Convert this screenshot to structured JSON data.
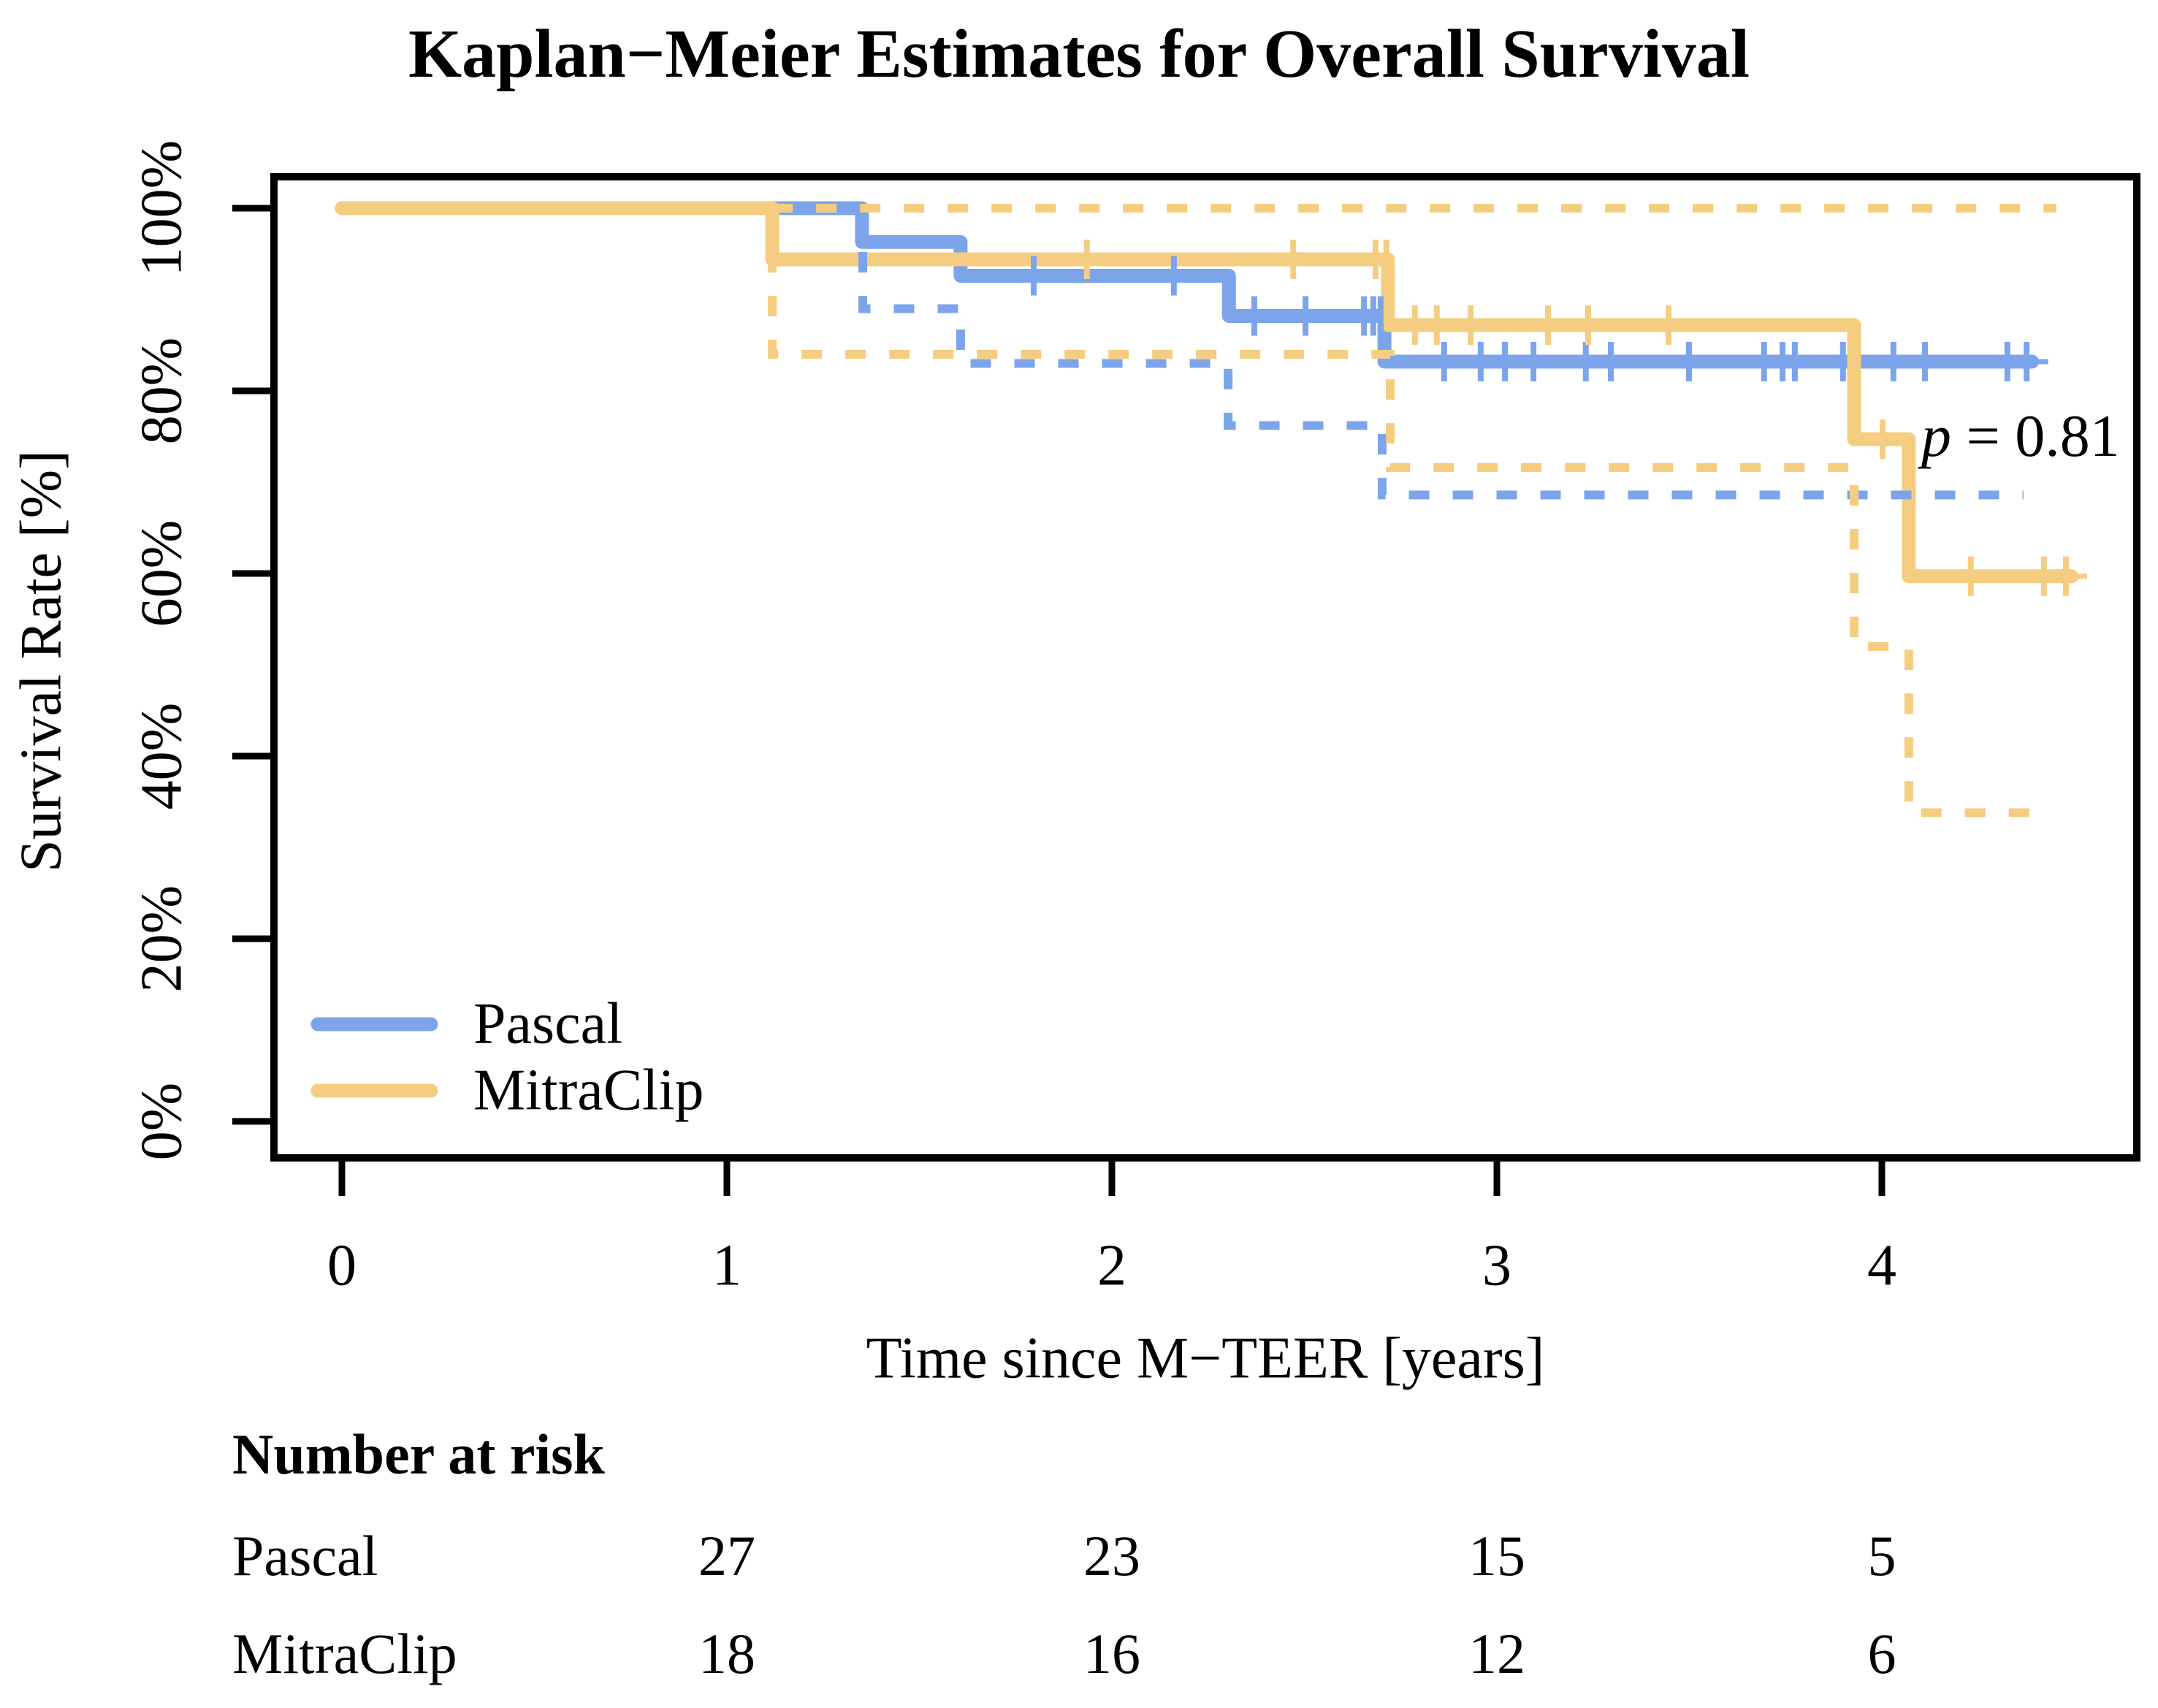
{
  "chart_data": {
    "type": "line",
    "subtype": "kaplan-meier-step",
    "title": "Kaplan−Meier Estimates for Overall Survival",
    "xlabel": "Time since M−TEER [years]",
    "ylabel": "Survival Rate [%]",
    "xlim": [
      0,
      4.66
    ],
    "ylim": [
      0,
      100
    ],
    "grid": false,
    "legend_position": "bottom-left",
    "x_ticks": [
      0,
      1,
      2,
      3,
      4
    ],
    "y_ticks": [
      {
        "label": "0%",
        "pct": 0
      },
      {
        "label": "20%",
        "pct": 20
      },
      {
        "label": "40%",
        "pct": 40
      },
      {
        "label": "60%",
        "pct": 60
      },
      {
        "label": "80%",
        "pct": 80
      },
      {
        "label": "100%",
        "pct": 100
      }
    ],
    "annotation": {
      "variable": "p",
      "rest": " = 0.81"
    },
    "series": [
      {
        "name": "Pascal",
        "color": "#7CA4EB",
        "steps": [
          [
            0,
            100
          ],
          [
            1.351,
            96.3
          ],
          [
            1.607,
            92.6
          ],
          [
            2.304,
            88.2
          ],
          [
            2.708,
            83.2
          ]
        ],
        "end_t": 4.39,
        "tail_t": 4.432,
        "censor_marks": [
          [
            1.797,
            92.6
          ],
          [
            2.161,
            92.6
          ],
          [
            2.37,
            88.2
          ],
          [
            2.503,
            88.2
          ],
          [
            2.655,
            88.2
          ],
          [
            2.679,
            88.2
          ],
          [
            2.698,
            88.2
          ],
          [
            2.863,
            83.2
          ],
          [
            2.958,
            83.2
          ],
          [
            3.021,
            83.2
          ],
          [
            3.095,
            83.2
          ],
          [
            3.231,
            83.2
          ],
          [
            3.296,
            83.2
          ],
          [
            3.499,
            83.2
          ],
          [
            3.694,
            83.2
          ],
          [
            3.742,
            83.2
          ],
          [
            3.774,
            83.2
          ],
          [
            3.899,
            83.2
          ],
          [
            4.03,
            83.2
          ],
          [
            4.112,
            83.2
          ],
          [
            4.326,
            83.2
          ],
          [
            4.376,
            83.2
          ]
        ],
        "ci_lower": {
          "start_t": 1.353,
          "steps": [
            [
              1.353,
              89.0
            ],
            [
              1.607,
              83.0
            ],
            [
              2.302,
              76.2
            ],
            [
              2.702,
              68.6
            ]
          ],
          "end_t": 4.368
        },
        "ci_upper": null
      },
      {
        "name": "MitraClip",
        "color": "#F5CD80",
        "steps": [
          [
            0,
            100
          ],
          [
            1.118,
            94.4
          ],
          [
            2.717,
            87.2
          ],
          [
            3.928,
            74.7
          ],
          [
            4.07,
            59.7
          ]
        ],
        "end_t": 4.493,
        "tail_t": 4.533,
        "censor_marks": [
          [
            1.935,
            94.4
          ],
          [
            2.471,
            94.4
          ],
          [
            2.685,
            94.4
          ],
          [
            2.713,
            94.4
          ],
          [
            2.787,
            87.2
          ],
          [
            2.844,
            87.2
          ],
          [
            2.932,
            87.2
          ],
          [
            3.133,
            87.2
          ],
          [
            3.237,
            87.2
          ],
          [
            3.446,
            87.2
          ],
          [
            4.002,
            74.7
          ],
          [
            4.231,
            59.7
          ],
          [
            4.421,
            59.7
          ],
          [
            4.478,
            59.7
          ]
        ],
        "ci_lower": {
          "start_t": 1.118,
          "steps": [
            [
              1.118,
              84.0
            ],
            [
              2.723,
              71.6
            ],
            [
              3.928,
              52.0
            ],
            [
              4.07,
              33.8
            ]
          ],
          "end_t": 4.431
        },
        "ci_upper": {
          "start_t": 1.118,
          "pct": 100,
          "end_t": 4.453
        }
      }
    ],
    "risk_table": {
      "header": "Number at risk",
      "time_points": [
        1,
        2,
        3,
        4
      ],
      "rows": [
        {
          "label": "Pascal",
          "values": [
            27,
            23,
            15,
            5
          ]
        },
        {
          "label": "MitraClip",
          "values": [
            18,
            16,
            12,
            6
          ]
        }
      ]
    }
  }
}
